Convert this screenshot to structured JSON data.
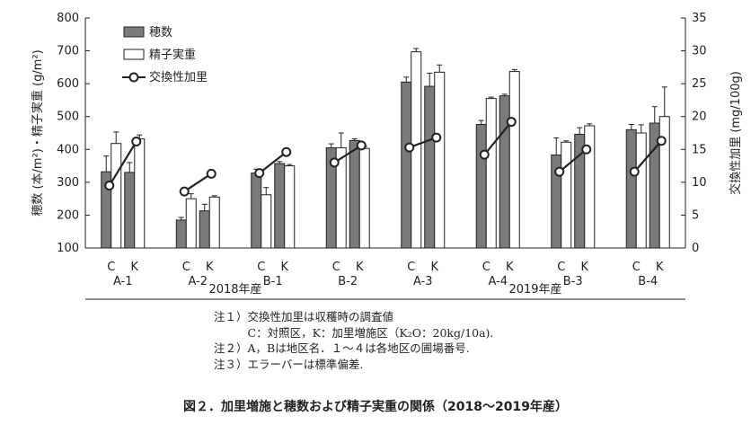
{
  "chart_data": {
    "type": "bar",
    "y_left": {
      "label": "穂数 (本/m²)・精子実重 (g/m²)",
      "min": 100,
      "max": 800,
      "ticks": [
        "100",
        "200",
        "300",
        "400",
        "500",
        "600",
        "700",
        "800"
      ]
    },
    "y_right": {
      "label": "交換性加里 (mg/100g)",
      "min": 0,
      "max": 35,
      "ticks": [
        "0",
        "5",
        "10",
        "15",
        "20",
        "25",
        "30",
        "35"
      ]
    },
    "legend": {
      "position": "top-left",
      "items": [
        "穂数",
        "精子実重",
        "交換性加里"
      ]
    },
    "sites": [
      {
        "name": "A-1",
        "year": "2018年産",
        "C": {
          "panicles": 332,
          "panicles_sd": 48,
          "grain": 418,
          "grain_sd": 35,
          "k": 9.5
        },
        "K": {
          "panicles": 330,
          "panicles_sd": 30,
          "grain": 432,
          "grain_sd": 12,
          "k": 16.2
        }
      },
      {
        "name": "A-2",
        "year": "2018年産",
        "C": {
          "panicles": 185,
          "panicles_sd": 8,
          "grain": 250,
          "grain_sd": 15,
          "k": 8.6
        },
        "K": {
          "panicles": 213,
          "panicles_sd": 20,
          "grain": 255,
          "grain_sd": 4,
          "k": 11.3
        }
      },
      {
        "name": "B-1",
        "year": "2018年産",
        "C": {
          "panicles": 328,
          "panicles_sd": 12,
          "grain": 262,
          "grain_sd": 22,
          "k": 11.4
        },
        "K": {
          "panicles": 357,
          "panicles_sd": 6,
          "grain": 350,
          "grain_sd": 4,
          "k": 14.6
        }
      },
      {
        "name": "B-2",
        "year": "2018年産",
        "C": {
          "panicles": 405,
          "panicles_sd": 12,
          "grain": 405,
          "grain_sd": 45,
          "k": 13.0
        },
        "K": {
          "panicles": 427,
          "panicles_sd": 5,
          "grain": 403,
          "grain_sd": 6,
          "k": 15.6
        }
      },
      {
        "name": "A-3",
        "year": "2019年産",
        "C": {
          "panicles": 605,
          "panicles_sd": 15,
          "grain": 697,
          "grain_sd": 10,
          "k": 15.3
        },
        "K": {
          "panicles": 592,
          "panicles_sd": 40,
          "grain": 635,
          "grain_sd": 22,
          "k": 16.8
        }
      },
      {
        "name": "A-4",
        "year": "2019年産",
        "C": {
          "panicles": 476,
          "panicles_sd": 12,
          "grain": 555,
          "grain_sd": 4,
          "k": 14.2
        },
        "K": {
          "panicles": 563,
          "panicles_sd": 5,
          "grain": 637,
          "grain_sd": 6,
          "k": 19.2
        }
      },
      {
        "name": "B-3",
        "year": "2019年産",
        "C": {
          "panicles": 383,
          "panicles_sd": 52,
          "grain": 422,
          "grain_sd": 4,
          "k": 11.6
        },
        "K": {
          "panicles": 446,
          "panicles_sd": 20,
          "grain": 472,
          "grain_sd": 6,
          "k": 15.0
        }
      },
      {
        "name": "B-4",
        "year": "2019年産",
        "C": {
          "panicles": 460,
          "panicles_sd": 16,
          "grain": 450,
          "grain_sd": 25,
          "k": 11.6
        },
        "K": {
          "panicles": 480,
          "panicles_sd": 50,
          "grain": 500,
          "grain_sd": 90,
          "k": 16.3
        }
      }
    ],
    "treatment_labels": [
      "C",
      "K"
    ],
    "years": [
      "2018年産",
      "2019年産"
    ]
  },
  "notes": [
    "注１）交換性加里は収穫時の調査値",
    "　　　C：対照区，K：加里増施区（K₂O：20kg/10a).",
    "注２）A，Bは地区名．１～４は各地区の圃場番号.",
    "注３）エラーバーは標準偏差."
  ],
  "caption": "図２．加里増施と穂数および精子実重の関係（2018～2019年産）",
  "colors": {
    "panicle_bar": "#7a7a7a",
    "grain_bar": "#ffffff",
    "line": "#222222"
  }
}
